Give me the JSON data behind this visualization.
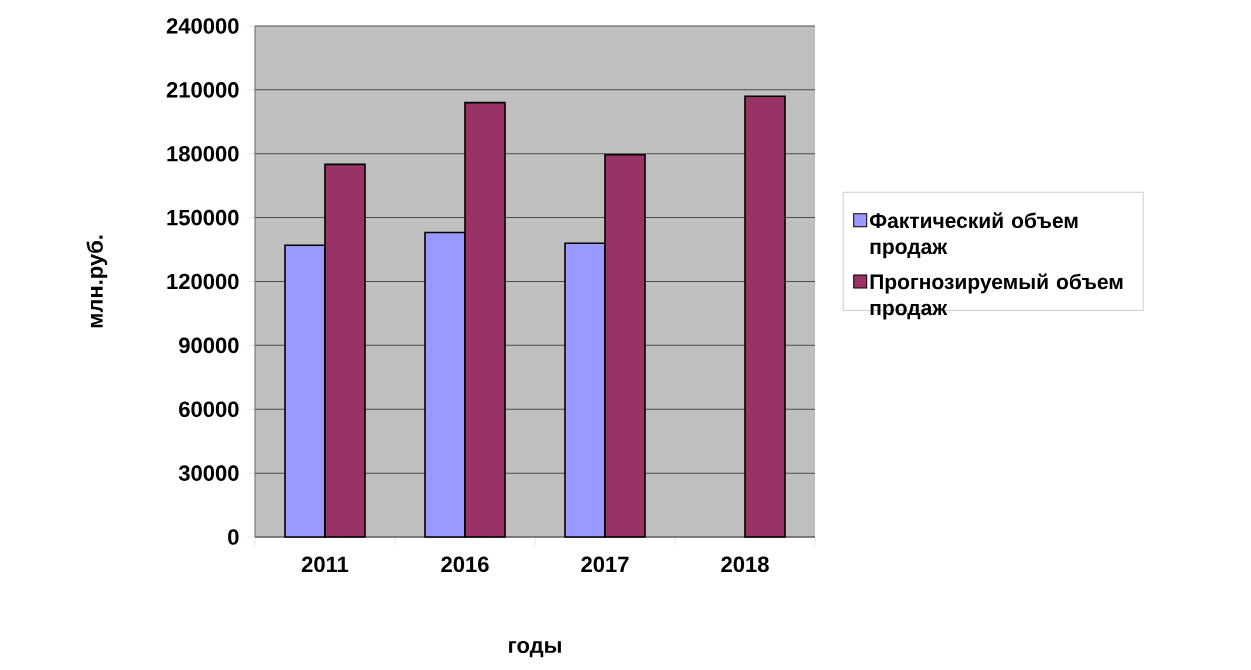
{
  "chart_data": {
    "type": "bar",
    "xlabel": "годы",
    "ylabel": "млн.руб.",
    "categories": [
      "2011",
      "2016",
      "2017",
      "2018"
    ],
    "series": [
      {
        "name": "Фактический объем продаж",
        "color": "#9999ff",
        "values": [
          137000,
          143000,
          138000,
          null
        ]
      },
      {
        "name": "Прогнозируемый объем продаж",
        "color": "#993366",
        "values": [
          175000,
          204000,
          179500,
          207000
        ]
      }
    ],
    "ylim": [
      0,
      240000
    ],
    "yticks": [
      0,
      30000,
      60000,
      90000,
      120000,
      150000,
      180000,
      210000,
      240000
    ],
    "grid": "y",
    "legend": "right"
  }
}
